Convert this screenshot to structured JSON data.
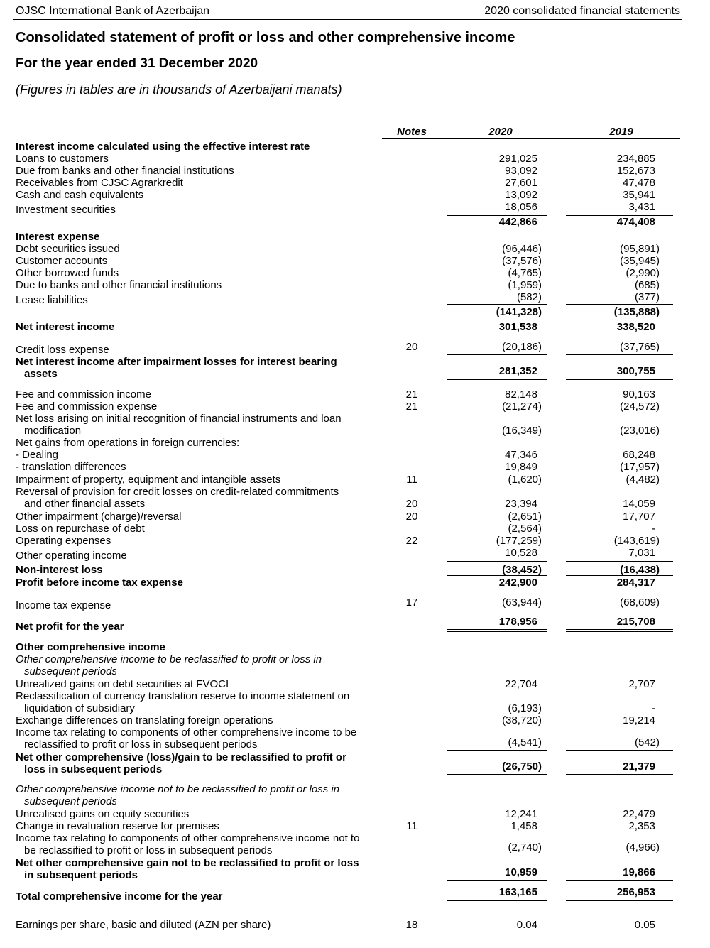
{
  "header": {
    "left": "OJSC International Bank of Azerbaijan",
    "right": "2020 consolidated financial statements"
  },
  "title": "Consolidated statement of profit or loss and other comprehensive income",
  "subtitle": "For the year ended 31 December 2020",
  "note": "(Figures in tables are in thousands of Azerbaijani manats)",
  "columns": {
    "notes": "Notes",
    "y2020": "2020",
    "y2019": "2019"
  },
  "rows": [
    {
      "label": "Interest income calculated using the effective interest rate",
      "bold": true
    },
    {
      "label": "Loans to customers",
      "v2020": "291,025",
      "v2019": "234,885"
    },
    {
      "label": "Due from banks and other financial institutions",
      "v2020": "93,092",
      "v2019": "152,673"
    },
    {
      "label": "Receivables from CJSC Agrarkredit",
      "v2020": "27,601",
      "v2019": "47,478"
    },
    {
      "label": "Cash and cash equivalents",
      "v2020": "13,092",
      "v2019": "35,941"
    },
    {
      "label": "Investment securities",
      "v2020": "18,056",
      "v2019": "3,431"
    },
    {
      "label": "",
      "v2020": "442,866",
      "v2019": "474,408",
      "bold": true
    },
    {
      "label": "Interest expense",
      "bold": true
    },
    {
      "label": "Debt securities issued",
      "v2020": "(96,446)",
      "v2019": "(95,891)"
    },
    {
      "label": "Customer accounts",
      "v2020": "(37,576)",
      "v2019": "(35,945)"
    },
    {
      "label": "Other borrowed funds",
      "v2020": "(4,765)",
      "v2019": "(2,990)"
    },
    {
      "label": "Due to banks and other financial institutions",
      "v2020": "(1,959)",
      "v2019": "(685)"
    },
    {
      "label": "Lease liabilities",
      "v2020": "(582)",
      "v2019": "(377)"
    },
    {
      "label": "",
      "v2020": "(141,328)",
      "v2019": "(135,888)",
      "bold": true
    },
    {
      "label": "Net interest income",
      "v2020": "301,538",
      "v2019": "338,520",
      "bold": true
    },
    {
      "label": "Credit loss expense",
      "notes": "20",
      "v2020": "(20,186)",
      "v2019": "(37,765)"
    },
    {
      "label": "Net interest income after impairment losses for interest bearing",
      "label2": "assets",
      "v2020": "281,352",
      "v2019": "300,755",
      "bold": true
    },
    {
      "label": "Fee and commission income",
      "notes": "21",
      "v2020": "82,148",
      "v2019": "90,163"
    },
    {
      "label": "Fee and commission expense",
      "notes": "21",
      "v2020": "(21,274)",
      "v2019": "(24,572)"
    },
    {
      "label": "Net loss arising on initial recognition of financial instruments and loan",
      "label2": "modification",
      "v2020": "(16,349)",
      "v2019": "(23,016)"
    },
    {
      "label": "Net gains from operations in foreign currencies:"
    },
    {
      "label": "- Dealing",
      "v2020": "47,346",
      "v2019": "68,248"
    },
    {
      "label": "- translation differences",
      "v2020": "19,849",
      "v2019": "(17,957)"
    },
    {
      "label": "Impairment of property, equipment and intangible assets",
      "notes": "11",
      "v2020": "(1,620)",
      "v2019": "(4,482)"
    },
    {
      "label": "Reversal of provision for credit losses on credit-related commitments",
      "label2": "and other financial assets",
      "notes": "20",
      "v2020": "23,394",
      "v2019": "14,059"
    },
    {
      "label": "Other impairment (charge)/reversal",
      "notes": "20",
      "v2020": "(2,651)",
      "v2019": "17,707"
    },
    {
      "label": "Loss on repurchase of debt",
      "v2020": "(2,564)",
      "v2019": "-"
    },
    {
      "label": "Operating expenses",
      "notes": "22",
      "v2020": "(177,259)",
      "v2019": "(143,619)"
    },
    {
      "label": "Other operating income",
      "v2020": "10,528",
      "v2019": "7,031"
    },
    {
      "label": "Non-interest loss",
      "v2020": "(38,452)",
      "v2019": "(16,438)",
      "bold": true
    },
    {
      "label": "Profit before income tax expense",
      "v2020": "242,900",
      "v2019": "284,317",
      "bold": true
    },
    {
      "label": "Income tax expense",
      "notes": "17",
      "v2020": "(63,944)",
      "v2019": "(68,609)"
    },
    {
      "label": "Net profit for the year",
      "v2020": "178,956",
      "v2019": "215,708",
      "bold": true
    },
    {
      "label": "Other comprehensive income",
      "bold": true
    },
    {
      "label": "Other comprehensive income to be reclassified to profit or loss in",
      "label2": "subsequent periods",
      "italic": true
    },
    {
      "label": "Unrealized gains on debt securities at FVOCI",
      "v2020": "22,704",
      "v2019": "2,707"
    },
    {
      "label": "Reclassification of currency translation reserve to income statement on",
      "label2": "liquidation of subsidiary",
      "v2020": "(6,193)",
      "v2019": "-"
    },
    {
      "label": "Exchange differences on translating foreign operations",
      "v2020": "(38,720)",
      "v2019": "19,214"
    },
    {
      "label": "Income tax relating to components of other comprehensive income to be",
      "label2": "reclassified to profit or loss in subsequent periods",
      "v2020": "(4,541)",
      "v2019": "(542)"
    },
    {
      "label": "Net other comprehensive (loss)/gain to be reclassified to profit or",
      "label2": "loss in subsequent periods",
      "v2020": "(26,750)",
      "v2019": "21,379",
      "bold": true
    },
    {
      "label": "Other comprehensive income not to be reclassified to profit or loss in",
      "label2": "subsequent periods",
      "italic": true
    },
    {
      "label": "Unrealised gains on equity securities",
      "v2020": "12,241",
      "v2019": "22,479"
    },
    {
      "label": "Change in revaluation reserve for premises",
      "notes": "11",
      "v2020": "1,458",
      "v2019": "2,353"
    },
    {
      "label": "Income tax relating to components of other comprehensive income not to",
      "label2": "be reclassified to profit or loss in subsequent periods",
      "v2020": "(2,740)",
      "v2019": "(4,966)"
    },
    {
      "label": "Net other comprehensive gain not to be reclassified to profit or loss",
      "label2": "in subsequent periods",
      "v2020": "10,959",
      "v2019": "19,866",
      "bold": true
    },
    {
      "label": "Total comprehensive income for the year",
      "v2020": "163,165",
      "v2019": "256,953",
      "bold": true
    },
    {
      "label": "Earnings per share, basic and diluted (AZN per share)",
      "notes": "18",
      "v2020": "0.04",
      "v2019": "0.05"
    }
  ]
}
